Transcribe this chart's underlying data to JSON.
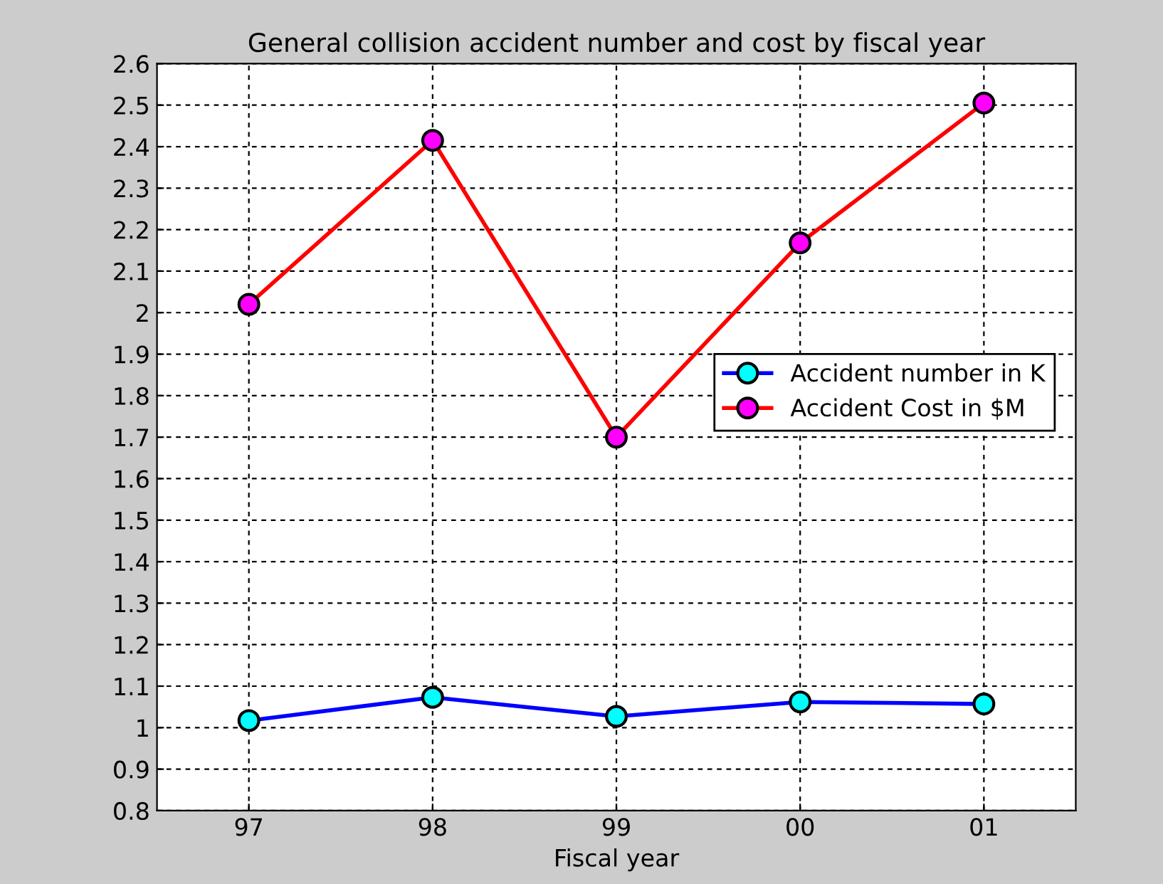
{
  "chart_data": {
    "type": "line",
    "title": "General collision accident number and cost by fiscal year",
    "xlabel": "Fiscal year",
    "categories": [
      "97",
      "98",
      "99",
      "00",
      "01"
    ],
    "series": [
      {
        "name": "Accident number in K",
        "color": "#0000ff",
        "values": [
          1.017,
          1.073,
          1.027,
          1.062,
          1.057
        ]
      },
      {
        "name": "Accident Cost in $M",
        "color": "#ff0000",
        "values": [
          2.02,
          2.415,
          1.7,
          2.168,
          2.505
        ]
      }
    ],
    "ylim": [
      0.8,
      2.6
    ],
    "yticks": [
      0.8,
      0.9,
      1,
      1.1,
      1.2,
      1.3,
      1.4,
      1.5,
      1.6,
      1.7,
      1.8,
      1.9,
      2,
      2.1,
      2.2,
      2.3,
      2.4,
      2.5,
      2.6
    ],
    "grid": true,
    "legend": "center right",
    "marker": "circle",
    "line_style": "solid"
  }
}
